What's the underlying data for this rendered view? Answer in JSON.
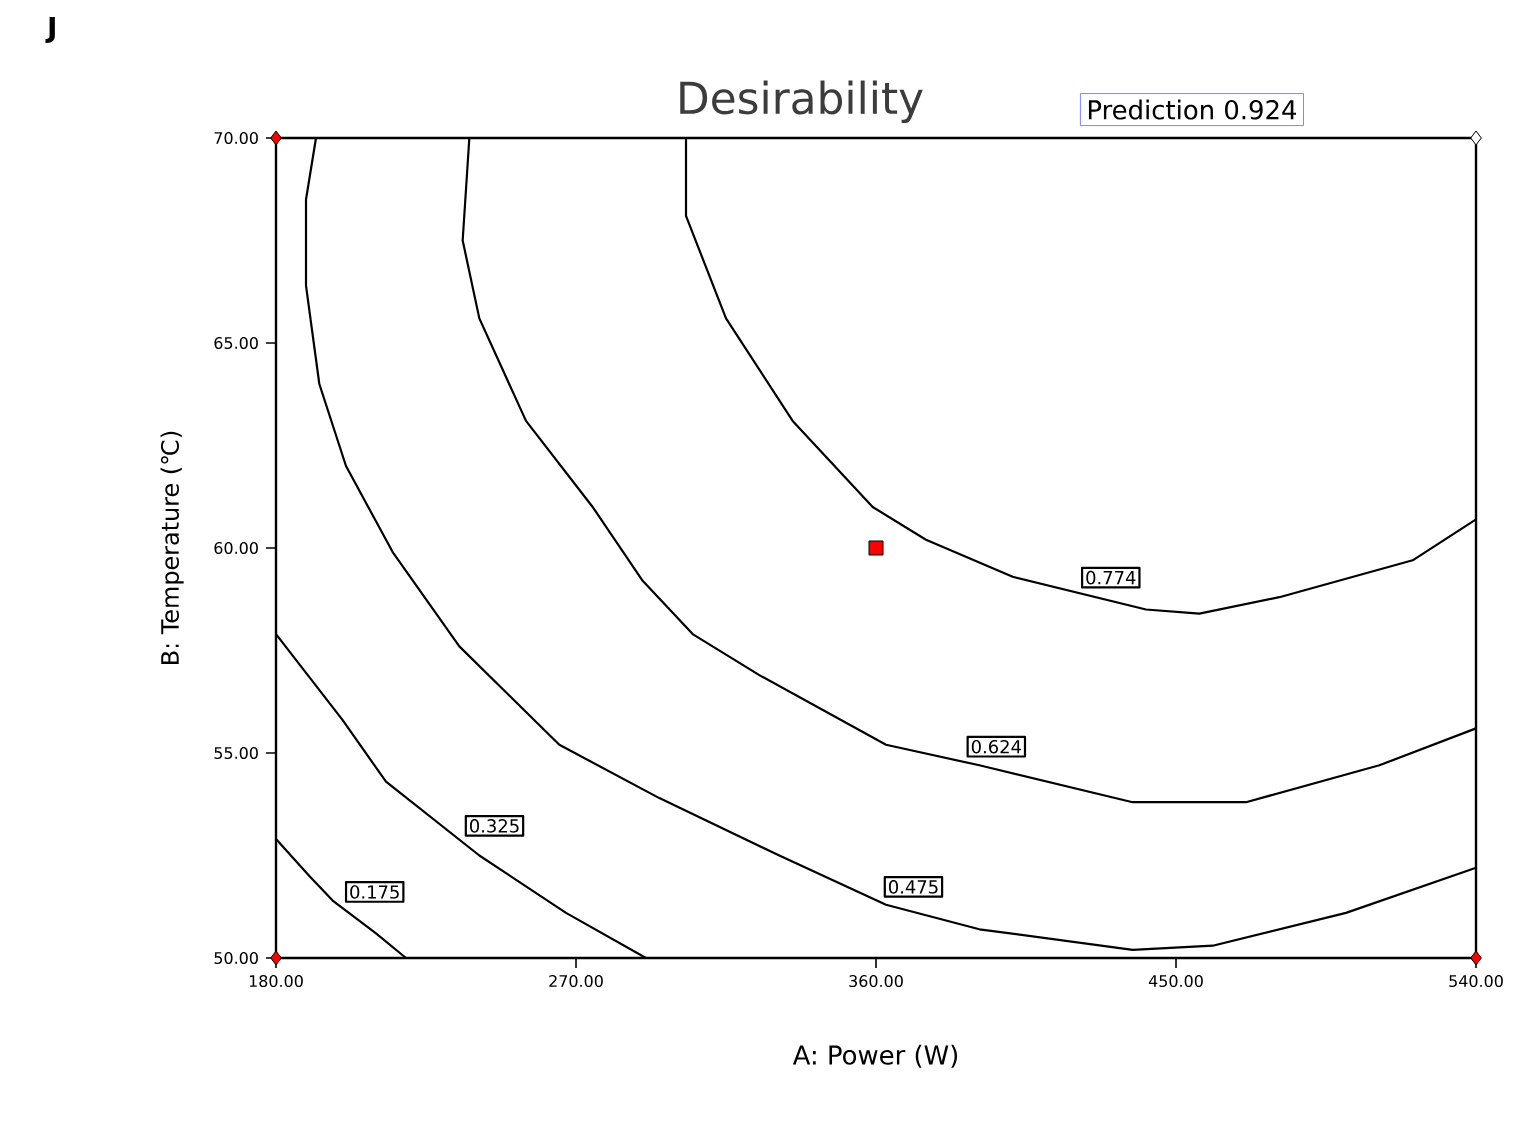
{
  "chart_data": {
    "type": "line",
    "title": "Desirability",
    "xlabel": "A:  Power (W)",
    "ylabel": "B: Temperature (℃)",
    "annotations": [
      "J",
      "Prediction    0.924"
    ],
    "xlim": [
      180,
      540
    ],
    "ylim": [
      50,
      70
    ],
    "xticks": [
      {
        "value": 180,
        "label": "180.00"
      },
      {
        "value": 270,
        "label": "270.00"
      },
      {
        "value": 360,
        "label": "360.00"
      },
      {
        "value": 450,
        "label": "450.00"
      },
      {
        "value": 540,
        "label": "540.00"
      }
    ],
    "yticks": [
      {
        "value": 50,
        "label": "50.00"
      },
      {
        "value": 55,
        "label": "55.00"
      },
      {
        "value": 60,
        "label": "60.00"
      },
      {
        "value": 65,
        "label": "65.00"
      },
      {
        "value": 70,
        "label": "70.00"
      }
    ],
    "marker": "none",
    "line_style": "solid",
    "series": [
      {
        "name": "0.175",
        "color": "#000000",
        "x": [
          180,
          190,
          197,
          210,
          219
        ],
        "values": [
          52.9,
          52.0,
          51.4,
          50.6,
          50
        ]
      },
      {
        "name": "0.325",
        "color": "#000000",
        "x": [
          180,
          200,
          213,
          241,
          267,
          291
        ],
        "values": [
          57.9,
          55.8,
          54.3,
          52.5,
          51.1,
          50
        ]
      },
      {
        "name": "0.475",
        "color": "#000000",
        "x": [
          192,
          189,
          189,
          193,
          201,
          215,
          235,
          265,
          295,
          331,
          363,
          391,
          437,
          461,
          501,
          540
        ],
        "values": [
          70,
          68.5,
          66.4,
          64,
          62,
          59.9,
          57.6,
          55.2,
          53.9,
          52.5,
          51.3,
          50.7,
          50.2,
          50.3,
          51.1,
          52.2
        ]
      },
      {
        "name": "0.624",
        "color": "#000000",
        "x": [
          238,
          236,
          241,
          255,
          275,
          290,
          305,
          325,
          363,
          391,
          437,
          471,
          511,
          540
        ],
        "values": [
          70,
          67.5,
          65.6,
          63.1,
          61,
          59.2,
          57.9,
          56.9,
          55.2,
          54.7,
          53.8,
          53.8,
          54.7,
          55.6
        ]
      },
      {
        "name": "0.774",
        "color": "#000000",
        "x": [
          303,
          303,
          315,
          335,
          359,
          375,
          401,
          441,
          457,
          481,
          521,
          540
        ],
        "values": [
          70,
          68.1,
          65.6,
          63.1,
          61,
          60.2,
          59.3,
          58.5,
          58.4,
          58.8,
          59.7,
          60.7
        ]
      },
      {
        "type": "scatter",
        "marker": "diamond",
        "colors": [
          "#ff0000",
          "#ff0000",
          "#ff0000",
          "#ffffff"
        ],
        "x": [
          180,
          180,
          540,
          540
        ],
        "values": [
          70,
          50,
          50,
          70
        ]
      },
      {
        "type": "scatter",
        "marker": "square",
        "color": "#ff0000",
        "x": [
          360
        ],
        "values": [
          60
        ]
      }
    ]
  }
}
